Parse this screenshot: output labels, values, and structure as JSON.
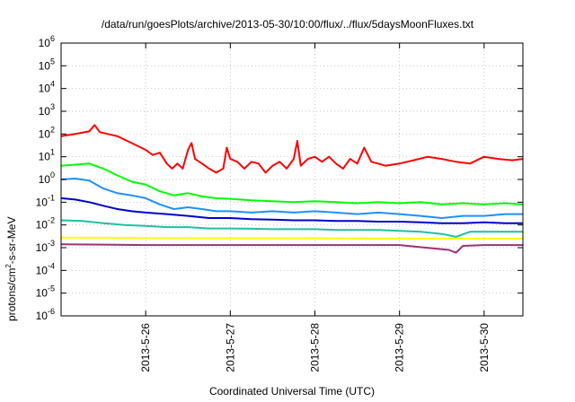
{
  "chart_data": {
    "type": "line",
    "title": "/data/run/goesPlots/archive/2013-05-30/10:00/flux/../flux/5daysMoonFluxes.txt",
    "xlabel": "Coordinated Universal Time (UTC)",
    "ylabel": {
      "before": "protons/cm",
      "sup": "2",
      "after": "-s-sr-MeV"
    },
    "yscale": "log",
    "ylim": [
      1e-06,
      1000000.0
    ],
    "xlim": [
      "2013-05-25T00:00",
      "2013-05-30T11:00"
    ],
    "grid": true,
    "y_ticks": [
      {
        "value": 1e-06,
        "mantissa": "10",
        "exp": "-6"
      },
      {
        "value": 1e-05,
        "mantissa": "10",
        "exp": "-5"
      },
      {
        "value": 0.0001,
        "mantissa": "10",
        "exp": "-4"
      },
      {
        "value": 0.001,
        "mantissa": "10",
        "exp": "-3"
      },
      {
        "value": 0.01,
        "mantissa": "10",
        "exp": "-2"
      },
      {
        "value": 0.1,
        "mantissa": "10",
        "exp": "-1"
      },
      {
        "value": 1,
        "mantissa": "10",
        "exp": "0"
      },
      {
        "value": 10,
        "mantissa": "10",
        "exp": "1"
      },
      {
        "value": 100,
        "mantissa": "10",
        "exp": "2"
      },
      {
        "value": 1000,
        "mantissa": "10",
        "exp": "3"
      },
      {
        "value": 10000,
        "mantissa": "10",
        "exp": "4"
      },
      {
        "value": 100000,
        "mantissa": "10",
        "exp": "5"
      },
      {
        "value": 1000000,
        "mantissa": "10",
        "exp": "6"
      }
    ],
    "x_ticks": [
      {
        "value": "2013-05-26T00:00",
        "label": "2013-5-26"
      },
      {
        "value": "2013-05-27T00:00",
        "label": "2013-5-27"
      },
      {
        "value": "2013-05-28T00:00",
        "label": "2013-5-28"
      },
      {
        "value": "2013-05-29T00:00",
        "label": "2013-5-29"
      },
      {
        "value": "2013-05-30T00:00",
        "label": "2013-5-30"
      }
    ],
    "series": [
      {
        "color": "#ff0000",
        "points": [
          [
            "2013-05-25T00:00",
            80
          ],
          [
            "2013-05-25T04:00",
            100
          ],
          [
            "2013-05-25T08:00",
            130
          ],
          [
            "2013-05-25T09:30",
            250
          ],
          [
            "2013-05-25T11:00",
            120
          ],
          [
            "2013-05-25T16:00",
            80
          ],
          [
            "2013-05-25T20:00",
            40
          ],
          [
            "2013-05-26T00:00",
            20
          ],
          [
            "2013-05-26T02:00",
            12
          ],
          [
            "2013-05-26T04:00",
            15
          ],
          [
            "2013-05-26T06:00",
            5
          ],
          [
            "2013-05-26T07:30",
            3
          ],
          [
            "2013-05-26T09:00",
            5
          ],
          [
            "2013-05-26T10:30",
            3
          ],
          [
            "2013-05-26T12:00",
            20
          ],
          [
            "2013-05-26T13:00",
            40
          ],
          [
            "2013-05-26T14:00",
            8
          ],
          [
            "2013-05-26T16:00",
            5
          ],
          [
            "2013-05-26T18:00",
            3
          ],
          [
            "2013-05-26T20:00",
            2
          ],
          [
            "2013-05-26T22:00",
            3
          ],
          [
            "2013-05-26T23:00",
            25
          ],
          [
            "2013-05-27T00:00",
            8
          ],
          [
            "2013-05-27T02:00",
            6
          ],
          [
            "2013-05-27T04:00",
            3
          ],
          [
            "2013-05-27T06:00",
            6
          ],
          [
            "2013-05-27T08:00",
            5
          ],
          [
            "2013-05-27T10:00",
            2
          ],
          [
            "2013-05-27T12:00",
            4
          ],
          [
            "2013-05-27T14:00",
            6
          ],
          [
            "2013-05-27T16:00",
            3
          ],
          [
            "2013-05-27T18:00",
            8
          ],
          [
            "2013-05-27T19:00",
            50
          ],
          [
            "2013-05-27T20:00",
            4
          ],
          [
            "2013-05-27T22:00",
            8
          ],
          [
            "2013-05-28T00:00",
            10
          ],
          [
            "2013-05-28T02:00",
            6
          ],
          [
            "2013-05-28T04:00",
            10
          ],
          [
            "2013-05-28T06:00",
            5
          ],
          [
            "2013-05-28T08:00",
            3
          ],
          [
            "2013-05-28T10:00",
            8
          ],
          [
            "2013-05-28T12:00",
            5
          ],
          [
            "2013-05-28T14:00",
            25
          ],
          [
            "2013-05-28T16:00",
            6
          ],
          [
            "2013-05-28T18:00",
            5
          ],
          [
            "2013-05-28T20:00",
            4
          ],
          [
            "2013-05-29T00:00",
            5
          ],
          [
            "2013-05-29T04:00",
            7
          ],
          [
            "2013-05-29T08:00",
            10
          ],
          [
            "2013-05-29T12:00",
            8
          ],
          [
            "2013-05-29T16:00",
            6
          ],
          [
            "2013-05-29T20:00",
            5
          ],
          [
            "2013-05-30T00:00",
            10
          ],
          [
            "2013-05-30T04:00",
            8
          ],
          [
            "2013-05-30T08:00",
            7
          ],
          [
            "2013-05-30T11:00",
            8
          ]
        ]
      },
      {
        "color": "#00ff00",
        "points": [
          [
            "2013-05-25T00:00",
            4
          ],
          [
            "2013-05-25T04:00",
            4.5
          ],
          [
            "2013-05-25T08:00",
            5
          ],
          [
            "2013-05-25T12:00",
            3
          ],
          [
            "2013-05-25T16:00",
            1.5
          ],
          [
            "2013-05-25T20:00",
            0.8
          ],
          [
            "2013-05-26T00:00",
            0.6
          ],
          [
            "2013-05-26T04:00",
            0.3
          ],
          [
            "2013-05-26T08:00",
            0.2
          ],
          [
            "2013-05-26T12:00",
            0.25
          ],
          [
            "2013-05-26T16:00",
            0.18
          ],
          [
            "2013-05-26T20:00",
            0.15
          ],
          [
            "2013-05-27T00:00",
            0.14
          ],
          [
            "2013-05-27T06:00",
            0.12
          ],
          [
            "2013-05-27T12:00",
            0.11
          ],
          [
            "2013-05-27T18:00",
            0.1
          ],
          [
            "2013-05-28T00:00",
            0.11
          ],
          [
            "2013-05-28T06:00",
            0.1
          ],
          [
            "2013-05-28T12:00",
            0.09
          ],
          [
            "2013-05-28T18:00",
            0.1
          ],
          [
            "2013-05-29T00:00",
            0.09
          ],
          [
            "2013-05-29T06:00",
            0.1
          ],
          [
            "2013-05-29T12:00",
            0.08
          ],
          [
            "2013-05-29T18:00",
            0.09
          ],
          [
            "2013-05-30T00:00",
            0.08
          ],
          [
            "2013-05-30T06:00",
            0.09
          ],
          [
            "2013-05-30T11:00",
            0.08
          ]
        ]
      },
      {
        "color": "#1e90ff",
        "points": [
          [
            "2013-05-25T00:00",
            1
          ],
          [
            "2013-05-25T04:00",
            1.1
          ],
          [
            "2013-05-25T08:00",
            0.9
          ],
          [
            "2013-05-25T12:00",
            0.4
          ],
          [
            "2013-05-25T16:00",
            0.25
          ],
          [
            "2013-05-25T20:00",
            0.2
          ],
          [
            "2013-05-26T00:00",
            0.15
          ],
          [
            "2013-05-26T04:00",
            0.08
          ],
          [
            "2013-05-26T08:00",
            0.05
          ],
          [
            "2013-05-26T12:00",
            0.06
          ],
          [
            "2013-05-26T16:00",
            0.05
          ],
          [
            "2013-05-26T20:00",
            0.04
          ],
          [
            "2013-05-27T00:00",
            0.04
          ],
          [
            "2013-05-27T06:00",
            0.035
          ],
          [
            "2013-05-27T12:00",
            0.04
          ],
          [
            "2013-05-27T18:00",
            0.035
          ],
          [
            "2013-05-28T00:00",
            0.04
          ],
          [
            "2013-05-28T06:00",
            0.035
          ],
          [
            "2013-05-28T12:00",
            0.03
          ],
          [
            "2013-05-28T18:00",
            0.035
          ],
          [
            "2013-05-29T00:00",
            0.03
          ],
          [
            "2013-05-29T06:00",
            0.025
          ],
          [
            "2013-05-29T12:00",
            0.02
          ],
          [
            "2013-05-29T18:00",
            0.025
          ],
          [
            "2013-05-30T00:00",
            0.025
          ],
          [
            "2013-05-30T06:00",
            0.03
          ],
          [
            "2013-05-30T11:00",
            0.03
          ]
        ]
      },
      {
        "color": "#0000cd",
        "points": [
          [
            "2013-05-25T00:00",
            0.15
          ],
          [
            "2013-05-25T04:00",
            0.13
          ],
          [
            "2013-05-25T08:00",
            0.1
          ],
          [
            "2013-05-25T12:00",
            0.07
          ],
          [
            "2013-05-25T16:00",
            0.05
          ],
          [
            "2013-05-25T20:00",
            0.04
          ],
          [
            "2013-05-26T00:00",
            0.035
          ],
          [
            "2013-05-26T06:00",
            0.03
          ],
          [
            "2013-05-26T12:00",
            0.025
          ],
          [
            "2013-05-26T18:00",
            0.02
          ],
          [
            "2013-05-27T00:00",
            0.02
          ],
          [
            "2013-05-27T06:00",
            0.018
          ],
          [
            "2013-05-27T12:00",
            0.017
          ],
          [
            "2013-05-27T18:00",
            0.016
          ],
          [
            "2013-05-28T00:00",
            0.016
          ],
          [
            "2013-05-28T06:00",
            0.015
          ],
          [
            "2013-05-28T12:00",
            0.015
          ],
          [
            "2013-05-28T18:00",
            0.014
          ],
          [
            "2013-05-29T00:00",
            0.014
          ],
          [
            "2013-05-29T06:00",
            0.013
          ],
          [
            "2013-05-29T12:00",
            0.012
          ],
          [
            "2013-05-29T18:00",
            0.012
          ],
          [
            "2013-05-30T00:00",
            0.013
          ],
          [
            "2013-05-30T06:00",
            0.012
          ],
          [
            "2013-05-30T11:00",
            0.012
          ]
        ]
      },
      {
        "color": "#20c0a0",
        "points": [
          [
            "2013-05-25T00:00",
            0.016
          ],
          [
            "2013-05-25T06:00",
            0.015
          ],
          [
            "2013-05-25T12:00",
            0.012
          ],
          [
            "2013-05-25T18:00",
            0.01
          ],
          [
            "2013-05-26T00:00",
            0.009
          ],
          [
            "2013-05-26T06:00",
            0.008
          ],
          [
            "2013-05-26T12:00",
            0.008
          ],
          [
            "2013-05-26T18:00",
            0.007
          ],
          [
            "2013-05-27T00:00",
            0.007
          ],
          [
            "2013-05-27T06:00",
            0.0068
          ],
          [
            "2013-05-27T12:00",
            0.0065
          ],
          [
            "2013-05-27T18:00",
            0.0065
          ],
          [
            "2013-05-28T00:00",
            0.0065
          ],
          [
            "2013-05-28T06:00",
            0.006
          ],
          [
            "2013-05-28T12:00",
            0.006
          ],
          [
            "2013-05-28T18:00",
            0.006
          ],
          [
            "2013-05-29T00:00",
            0.0055
          ],
          [
            "2013-05-29T06:00",
            0.005
          ],
          [
            "2013-05-29T12:00",
            0.004
          ],
          [
            "2013-05-29T16:00",
            0.003
          ],
          [
            "2013-05-29T20:00",
            0.005
          ],
          [
            "2013-05-30T00:00",
            0.005
          ],
          [
            "2013-05-30T06:00",
            0.005
          ],
          [
            "2013-05-30T11:00",
            0.005
          ]
        ]
      },
      {
        "color": "#ffff00",
        "points": [
          [
            "2013-05-25T00:00",
            0.0028
          ],
          [
            "2013-05-26T00:00",
            0.0027
          ],
          [
            "2013-05-27T00:00",
            0.0026
          ],
          [
            "2013-05-28T00:00",
            0.0026
          ],
          [
            "2013-05-29T00:00",
            0.0025
          ],
          [
            "2013-05-30T00:00",
            0.0025
          ],
          [
            "2013-05-30T11:00",
            0.0025
          ]
        ]
      },
      {
        "color": "#993377",
        "points": [
          [
            "2013-05-25T00:00",
            0.0014
          ],
          [
            "2013-05-26T00:00",
            0.0013
          ],
          [
            "2013-05-27T00:00",
            0.0013
          ],
          [
            "2013-05-28T00:00",
            0.0013
          ],
          [
            "2013-05-29T00:00",
            0.0013
          ],
          [
            "2013-05-29T14:00",
            0.0008
          ],
          [
            "2013-05-29T16:00",
            0.0006
          ],
          [
            "2013-05-29T18:00",
            0.0012
          ],
          [
            "2013-05-30T00:00",
            0.0013
          ],
          [
            "2013-05-30T11:00",
            0.0013
          ]
        ]
      }
    ]
  }
}
